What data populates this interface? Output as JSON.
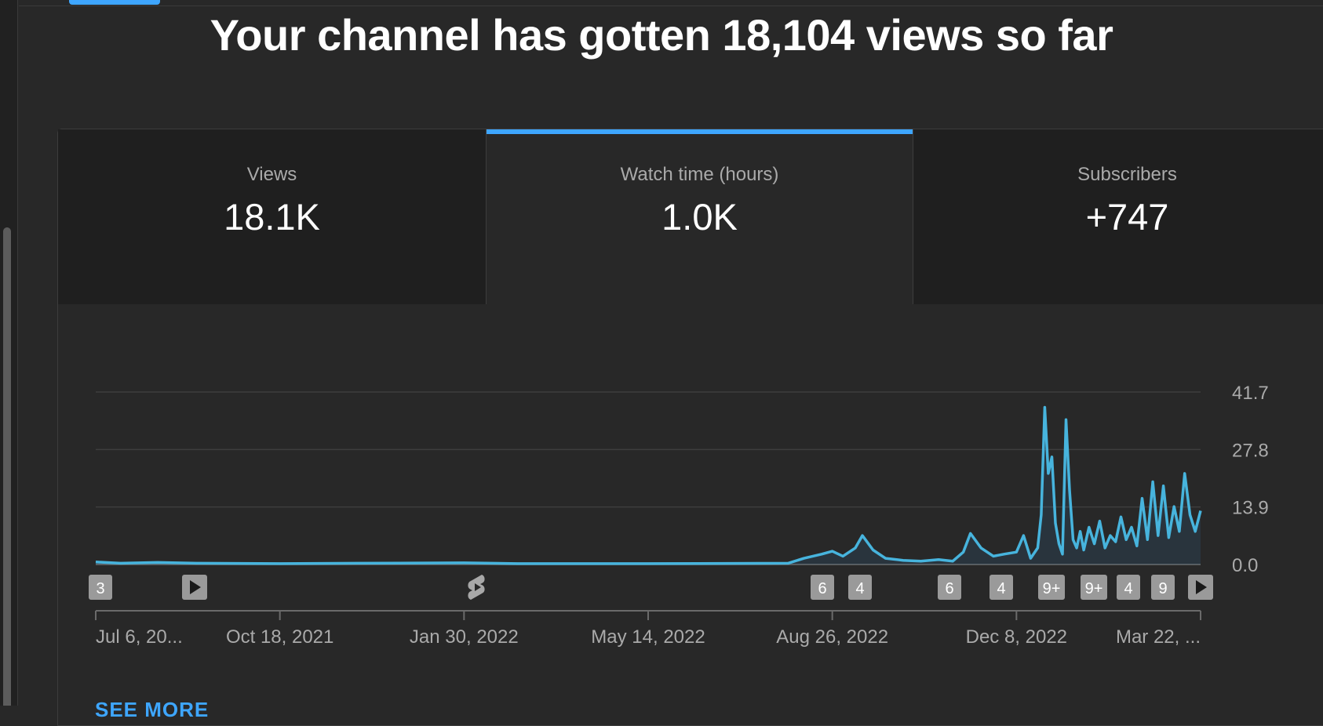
{
  "headline": "Your channel has gotten 18,104 views so far",
  "tabs": [
    {
      "label": "Views",
      "value": "18.1K",
      "selected": false
    },
    {
      "label": "Watch time (hours)",
      "value": "1.0K",
      "selected": true
    },
    {
      "label": "Subscribers",
      "value": "+747",
      "selected": false
    }
  ],
  "see_more": "SEE MORE",
  "colors": {
    "accent": "#3ea6ff",
    "line": "#3ea6ff",
    "background": "#282828",
    "tab_bg": "#1f1f1f"
  },
  "markers": [
    {
      "text": "3",
      "kind": "badge"
    },
    {
      "text": "",
      "kind": "play-icon"
    },
    {
      "text": "",
      "kind": "shorts-icon"
    },
    {
      "text": "6",
      "kind": "badge"
    },
    {
      "text": "4",
      "kind": "badge"
    },
    {
      "text": "6",
      "kind": "badge"
    },
    {
      "text": "4",
      "kind": "badge"
    },
    {
      "text": "9+",
      "kind": "badge"
    },
    {
      "text": "9+",
      "kind": "badge"
    },
    {
      "text": "4",
      "kind": "badge"
    },
    {
      "text": "9",
      "kind": "badge"
    },
    {
      "text": "",
      "kind": "play-icon"
    }
  ],
  "chart_data": {
    "type": "line",
    "title": "",
    "xlabel": "",
    "ylabel": "",
    "ylim": [
      0,
      41.7
    ],
    "xlim": [
      "2021-07-06",
      "2023-03-22"
    ],
    "grid": true,
    "y_ticks": [
      "41.7",
      "27.8",
      "13.9",
      "0.0"
    ],
    "x_tick_labels": [
      "Jul 6, 20...",
      "Oct 18, 2021",
      "Jan 30, 2022",
      "May 14, 2022",
      "Aug 26, 2022",
      "Dec 8, 2022",
      "Mar 22, ..."
    ],
    "series": [
      {
        "name": "",
        "x": [
          "2021-07-06",
          "2021-07-20",
          "2021-08-10",
          "2021-09-01",
          "2021-10-18",
          "2021-12-01",
          "2022-01-30",
          "2022-03-01",
          "2022-05-14",
          "2022-08-01",
          "2022-08-10",
          "2022-08-20",
          "2022-08-26",
          "2022-09-01",
          "2022-09-08",
          "2022-09-12",
          "2022-09-18",
          "2022-09-25",
          "2022-10-05",
          "2022-10-15",
          "2022-10-25",
          "2022-11-02",
          "2022-11-08",
          "2022-11-12",
          "2022-11-18",
          "2022-11-25",
          "2022-12-01",
          "2022-12-08",
          "2022-12-12",
          "2022-12-16",
          "2022-12-20",
          "2022-12-22",
          "2022-12-24",
          "2022-12-26",
          "2022-12-28",
          "2022-12-30",
          "2023-01-01",
          "2023-01-03",
          "2023-01-05",
          "2023-01-07",
          "2023-01-09",
          "2023-01-11",
          "2023-01-13",
          "2023-01-15",
          "2023-01-18",
          "2023-01-21",
          "2023-01-24",
          "2023-01-27",
          "2023-01-30",
          "2023-02-02",
          "2023-02-05",
          "2023-02-08",
          "2023-02-11",
          "2023-02-14",
          "2023-02-17",
          "2023-02-20",
          "2023-02-23",
          "2023-02-26",
          "2023-03-01",
          "2023-03-04",
          "2023-03-07",
          "2023-03-10",
          "2023-03-13",
          "2023-03-16",
          "2023-03-19",
          "2023-03-22"
        ],
        "values": [
          0.6,
          0.3,
          0.5,
          0.3,
          0.2,
          0.3,
          0.4,
          0.2,
          0.2,
          0.3,
          1.5,
          2.5,
          3.2,
          2.0,
          4.0,
          7.0,
          3.5,
          1.5,
          1.0,
          0.8,
          1.2,
          0.8,
          3.0,
          7.5,
          4.0,
          2.0,
          2.5,
          3.0,
          7.0,
          1.5,
          4.0,
          12.0,
          38.0,
          22.0,
          26.0,
          10.0,
          5.0,
          2.5,
          35.0,
          18.0,
          6.0,
          4.0,
          8.0,
          3.5,
          9.0,
          5.0,
          10.5,
          4.0,
          7.0,
          5.5,
          11.5,
          6.0,
          9.0,
          4.5,
          16.0,
          6.0,
          20.0,
          7.0,
          19.0,
          6.5,
          14.0,
          8.0,
          22.0,
          12.0,
          8.0,
          13.0
        ]
      }
    ]
  }
}
